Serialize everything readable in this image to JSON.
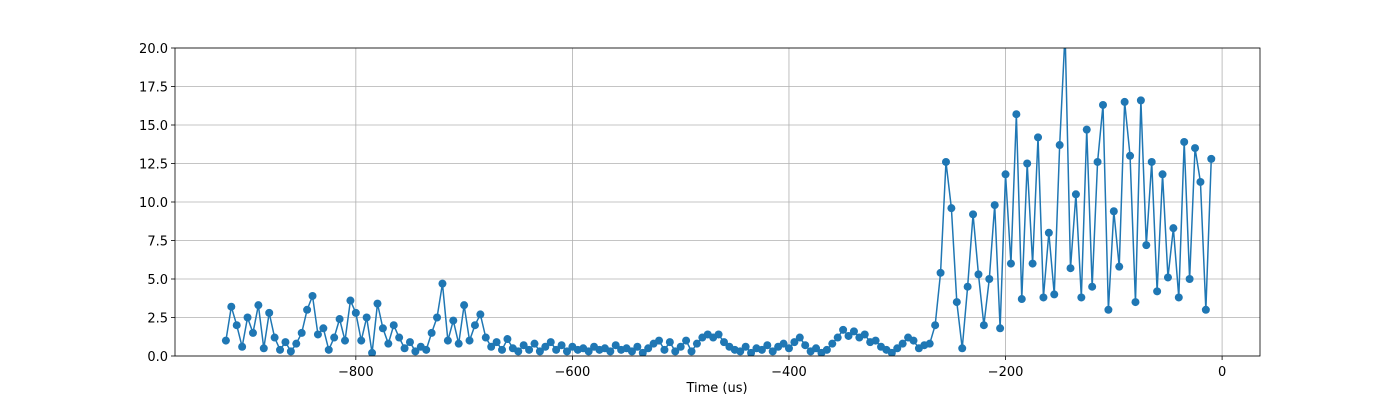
{
  "chart_data": {
    "type": "line",
    "xlabel": "Time (us)",
    "color": "#1f77b4",
    "grid": true,
    "marker": "o",
    "xlim": [
      -967,
      35
    ],
    "ylim": [
      0,
      20
    ],
    "xticks": [
      {
        "value": -800,
        "label": "−800"
      },
      {
        "value": -600,
        "label": "−600"
      },
      {
        "value": -400,
        "label": "−400"
      },
      {
        "value": -200,
        "label": "−200"
      },
      0
    ],
    "yticks": [
      {
        "value": 0,
        "label": "0.0"
      },
      {
        "value": 2.5,
        "label": "2.5"
      },
      {
        "value": 5,
        "label": "5.0"
      },
      {
        "value": 7.5,
        "label": "7.5"
      },
      {
        "value": 10,
        "label": "10.0"
      },
      {
        "value": 12.5,
        "label": "12.5"
      },
      {
        "value": 15,
        "label": "15.0"
      },
      {
        "value": 17.5,
        "label": "17.5"
      },
      {
        "value": 20,
        "label": "20.0"
      }
    ],
    "x": [
      -920,
      -915,
      -910,
      -905,
      -900,
      -895,
      -890,
      -885,
      -880,
      -875,
      -870,
      -865,
      -860,
      -855,
      -850,
      -845,
      -840,
      -835,
      -830,
      -825,
      -820,
      -815,
      -810,
      -805,
      -800,
      -795,
      -790,
      -785,
      -780,
      -775,
      -770,
      -765,
      -760,
      -755,
      -750,
      -745,
      -740,
      -735,
      -730,
      -725,
      -720,
      -715,
      -710,
      -705,
      -700,
      -695,
      -690,
      -685,
      -680,
      -675,
      -670,
      -665,
      -660,
      -655,
      -650,
      -645,
      -640,
      -635,
      -630,
      -625,
      -620,
      -615,
      -610,
      -605,
      -600,
      -595,
      -590,
      -585,
      -580,
      -575,
      -570,
      -565,
      -560,
      -555,
      -550,
      -545,
      -540,
      -535,
      -530,
      -525,
      -520,
      -515,
      -510,
      -505,
      -500,
      -495,
      -490,
      -485,
      -480,
      -475,
      -470,
      -465,
      -460,
      -455,
      -450,
      -445,
      -440,
      -435,
      -430,
      -425,
      -420,
      -415,
      -410,
      -405,
      -400,
      -395,
      -390,
      -385,
      -380,
      -375,
      -370,
      -365,
      -360,
      -355,
      -350,
      -345,
      -340,
      -335,
      -330,
      -325,
      -320,
      -315,
      -310,
      -305,
      -300,
      -295,
      -290,
      -285,
      -280,
      -275,
      -270,
      -265,
      -260,
      -255,
      -250,
      -245,
      -240,
      -235,
      -230,
      -225,
      -220,
      -215,
      -210,
      -205,
      -200,
      -195,
      -190,
      -185,
      -180,
      -175,
      -170,
      -165,
      -160,
      -155,
      -150,
      -145,
      -140,
      -135,
      -130,
      -125,
      -120,
      -115,
      -110,
      -105,
      -100,
      -95,
      -90,
      -85,
      -80,
      -75,
      -70,
      -65,
      -60,
      -55,
      -50,
      -45,
      -40,
      -35,
      -30,
      -25,
      -20,
      -15,
      -10
    ],
    "values": [
      1.0,
      3.2,
      2.0,
      0.6,
      2.5,
      1.5,
      3.3,
      0.5,
      2.8,
      1.2,
      0.4,
      0.9,
      0.3,
      0.8,
      1.5,
      3.0,
      3.9,
      1.4,
      1.8,
      0.4,
      1.2,
      2.4,
      1.0,
      3.6,
      2.8,
      1.0,
      2.5,
      0.2,
      3.4,
      1.8,
      0.8,
      2.0,
      1.2,
      0.5,
      0.9,
      0.3,
      0.6,
      0.4,
      1.5,
      2.5,
      4.7,
      1.0,
      2.3,
      0.8,
      3.3,
      1.0,
      2.0,
      2.7,
      1.2,
      0.6,
      0.9,
      0.4,
      1.1,
      0.5,
      0.3,
      0.7,
      0.4,
      0.8,
      0.3,
      0.6,
      0.9,
      0.4,
      0.7,
      0.3,
      0.6,
      0.4,
      0.5,
      0.3,
      0.6,
      0.4,
      0.5,
      0.3,
      0.7,
      0.4,
      0.5,
      0.3,
      0.6,
      0.2,
      0.5,
      0.8,
      1.0,
      0.4,
      0.9,
      0.3,
      0.6,
      1.0,
      0.3,
      0.8,
      1.2,
      1.4,
      1.2,
      1.4,
      0.9,
      0.6,
      0.4,
      0.3,
      0.6,
      0.2,
      0.5,
      0.4,
      0.7,
      0.3,
      0.6,
      0.8,
      0.5,
      0.9,
      1.2,
      0.7,
      0.3,
      0.5,
      0.2,
      0.4,
      0.8,
      1.2,
      1.7,
      1.3,
      1.6,
      1.2,
      1.4,
      0.9,
      1.0,
      0.6,
      0.4,
      0.2,
      0.5,
      0.8,
      1.2,
      1.0,
      0.5,
      0.7,
      0.8,
      2.0,
      5.4,
      12.6,
      9.6,
      3.5,
      0.5,
      4.5,
      9.2,
      5.3,
      2.0,
      5.0,
      9.8,
      1.8,
      11.8,
      6.0,
      15.7,
      3.7,
      12.5,
      6.0,
      14.2,
      3.8,
      8.0,
      4.0,
      13.7,
      21.0,
      5.7,
      10.5,
      3.8,
      14.7,
      4.5,
      12.6,
      16.3,
      3.0,
      9.4,
      5.8,
      16.5,
      13.0,
      3.5,
      16.6,
      7.2,
      12.6,
      4.2,
      11.8,
      5.1,
      8.3,
      3.8,
      13.9,
      5.0,
      13.5,
      11.3,
      3.0,
      12.8
    ]
  }
}
